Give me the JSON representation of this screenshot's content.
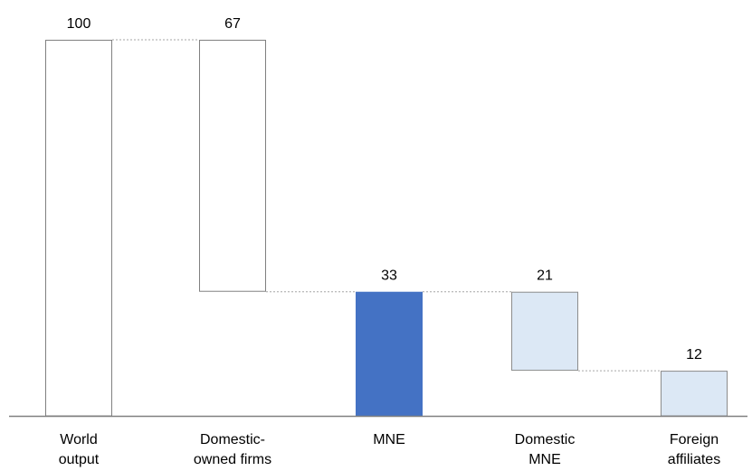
{
  "chart_data": {
    "type": "bar",
    "subtype": "waterfall",
    "title": "",
    "xlabel": "",
    "ylabel": "",
    "ylim": [
      0,
      100
    ],
    "grid": false,
    "legend": "none",
    "categories": [
      [
        "World",
        "output"
      ],
      [
        "Domestic-",
        "owned firms"
      ],
      [
        "MNE"
      ],
      [
        "Domestic",
        "MNE"
      ],
      [
        "Foreign",
        "affiliates"
      ]
    ],
    "values": [
      100,
      67,
      33,
      21,
      12
    ],
    "value_labels": [
      "100",
      "67",
      "33",
      "21",
      "12"
    ],
    "bars": [
      {
        "base": 0,
        "top": 100,
        "style": "outline"
      },
      {
        "base": 33,
        "top": 100,
        "style": "outline"
      },
      {
        "base": 0,
        "top": 33,
        "style": "solid"
      },
      {
        "base": 12,
        "top": 33,
        "style": "light"
      },
      {
        "base": 0,
        "top": 12,
        "style": "light"
      }
    ],
    "connectors": [
      {
        "from": 0,
        "to": 1,
        "level": 100
      },
      {
        "from": 1,
        "to": 2,
        "level": 33
      },
      {
        "from": 2,
        "to": 3,
        "level": 33
      },
      {
        "from": 3,
        "to": 4,
        "level": 12
      }
    ],
    "colors": {
      "outline_fill": "#ffffff",
      "outline_stroke": "#808080",
      "solid_fill": "#4472c4",
      "light_fill": "#dce8f5",
      "light_stroke": "#8c8c8c",
      "connector": "#a6a6a6",
      "baseline": "#808080"
    }
  }
}
